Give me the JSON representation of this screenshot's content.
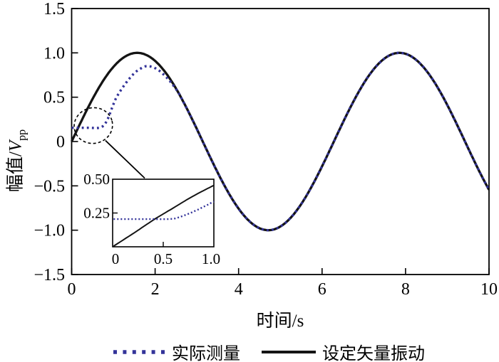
{
  "page": {
    "background": "#ffffff"
  },
  "chart_data": {
    "type": "line",
    "title": "",
    "xlabel": "时间/s",
    "ylabel_prefix": "幅值/",
    "ylabel_var": "V",
    "ylabel_sub": "pp",
    "xlim": [
      0,
      10
    ],
    "ylim": [
      -1.5,
      1.5
    ],
    "grid": false,
    "legend_position": "bottom-center",
    "xticks": {
      "values": [
        0,
        2,
        4,
        6,
        8,
        10
      ],
      "labels": [
        "0",
        "2",
        "4",
        "6",
        "8",
        "10"
      ]
    },
    "yticks": {
      "values": [
        1.5,
        1.0,
        0.5,
        0,
        -0.5,
        -1.0,
        -1.5
      ],
      "labels": [
        "1.5",
        "1.0",
        "0.5",
        "0",
        "−0.5",
        "−1.0",
        "−1.5"
      ]
    },
    "series": [
      {
        "name": "实际测量",
        "style": "dotted",
        "color": "#333399",
        "keypoints": [
          [
            0,
            0.155
          ],
          [
            0.4,
            0.155
          ],
          [
            0.7,
            0.16
          ],
          [
            0.85,
            0.24
          ],
          [
            1.0,
            0.42
          ],
          [
            1.1,
            0.52
          ],
          [
            1.3,
            0.66
          ],
          [
            1.5,
            0.77
          ],
          [
            1.7,
            0.835
          ],
          [
            1.85,
            0.85
          ],
          [
            2.05,
            0.815
          ],
          [
            2.25,
            0.735
          ],
          [
            2.45,
            0.625
          ],
          [
            2.6,
            0.52
          ]
        ],
        "follows_set_curve_from_t": 2.6,
        "peak": {
          "t": 1.85,
          "value": 0.85
        },
        "initial_flat_value": 0.155
      },
      {
        "name": "设定矢量振动",
        "style": "solid",
        "color": "#141414",
        "formula": "y = sin(t)",
        "t_start": 0,
        "t_end": 10,
        "amplitude": 1.0,
        "sample_step": 0.02
      }
    ],
    "annotation": {
      "type": "dashed-ellipse-with-callout",
      "ellipse_center_t": 0.52,
      "ellipse_center_v": 0.18
    },
    "inset": {
      "xlim": [
        -0.02,
        1.03
      ],
      "ylim": [
        0,
        0.5
      ],
      "xticks": {
        "values": [
          0,
          0.5,
          1.0
        ],
        "labels": [
          "0",
          "0.5",
          "1.0"
        ]
      },
      "yticks": {
        "values": [
          0.25,
          0.5
        ],
        "labels": [
          "0.25",
          "0.50"
        ]
      },
      "series": [
        {
          "name": "实际测量",
          "style": "dotted",
          "color": "#333399",
          "points": [
            [
              -0.02,
              0.205
            ],
            [
              0.3,
              0.205
            ],
            [
              0.55,
              0.205
            ],
            [
              0.65,
              0.215
            ],
            [
              0.8,
              0.255
            ],
            [
              0.92,
              0.295
            ],
            [
              1.03,
              0.335
            ]
          ]
        },
        {
          "name": "设定矢量振动",
          "style": "solid",
          "color": "#141414",
          "points": [
            [
              -0.02,
              0.005
            ],
            [
              0.2,
              0.105
            ],
            [
              0.4,
              0.2
            ],
            [
              0.6,
              0.285
            ],
            [
              0.8,
              0.37
            ],
            [
              1.03,
              0.455
            ]
          ]
        }
      ]
    }
  }
}
